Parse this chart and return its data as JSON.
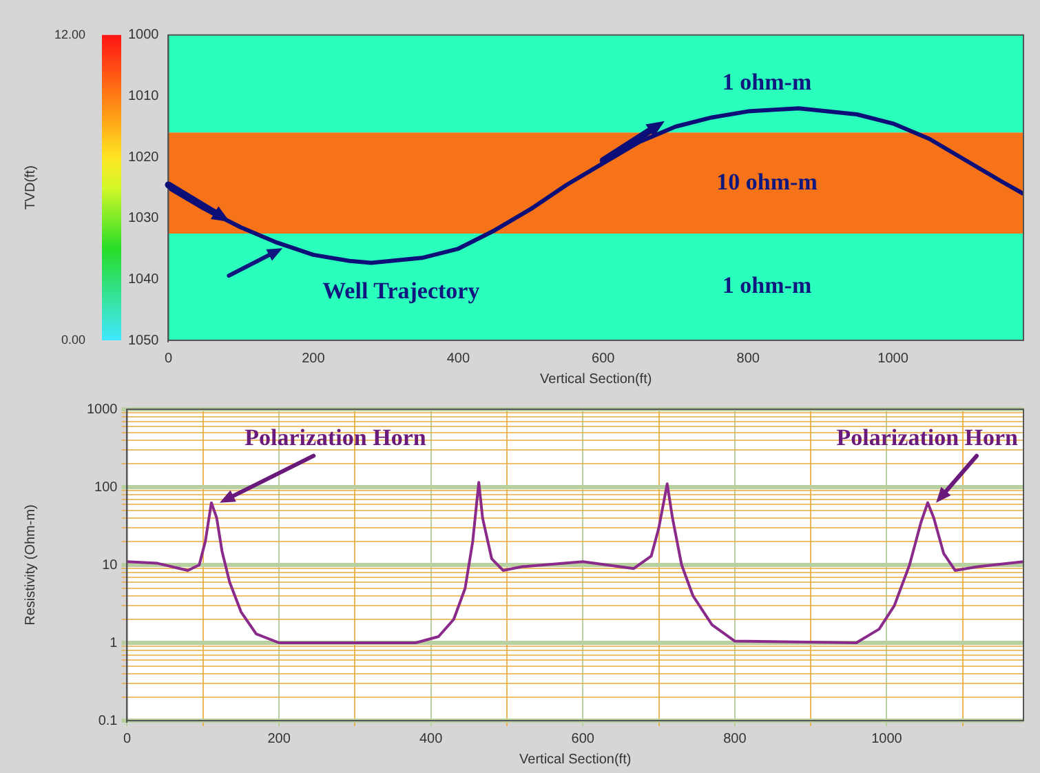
{
  "chart_data": [
    {
      "type": "line",
      "xlabel": "Vertical Section(ft)",
      "ylabel": "TVD(ft)",
      "xlim": [
        0,
        1180
      ],
      "xticks": [
        0,
        200,
        400,
        600,
        800,
        1000
      ],
      "ylim": [
        1050,
        1000
      ],
      "yticks": [
        1000,
        1010,
        1020,
        1030,
        1040,
        1050
      ],
      "grid": false,
      "legend": false,
      "clim": [
        0,
        12
      ],
      "cticks": [
        {
          "value": 0,
          "label": "0.00"
        },
        {
          "value": 12,
          "label": "12.00"
        }
      ],
      "bands": [
        {
          "axis": "y",
          "from": 1000,
          "to": 1016,
          "label": "1 ohm-m",
          "color": "#2affbb"
        },
        {
          "axis": "y",
          "from": 1016,
          "to": 1032.5,
          "label": "10 ohm-m",
          "color": "#f7731a"
        },
        {
          "axis": "y",
          "from": 1032.5,
          "to": 1050,
          "label": "1 ohm-m",
          "color": "#2affbb"
        }
      ],
      "series": [
        {
          "color": "#0c0f78",
          "x": [
            0,
            50,
            100,
            150,
            200,
            250,
            280,
            350,
            400,
            450,
            500,
            550,
            600,
            650,
            700,
            750,
            800,
            870,
            950,
            1000,
            1050,
            1100,
            1150,
            1180
          ],
          "values": [
            1025,
            1028.5,
            1031.5,
            1034,
            1036,
            1037,
            1037.3,
            1036.5,
            1035,
            1032,
            1028.5,
            1024.5,
            1021,
            1017.5,
            1015,
            1013.5,
            1012.5,
            1012,
            1013,
            1014.5,
            1017,
            1020.5,
            1024,
            1026
          ]
        }
      ],
      "annotations": [
        {
          "text": "Well Trajectory",
          "x": 150,
          "y": 1034
        }
      ]
    },
    {
      "type": "line",
      "xlabel": "Vertical Section(ft)",
      "ylabel": "Resistivity (Ohm-m)",
      "xlim": [
        0,
        1180
      ],
      "xticks": [
        0,
        {
          "value": 100,
          "label": null
        },
        200,
        {
          "value": 300,
          "label": null
        },
        400,
        {
          "value": 500,
          "label": null
        },
        600,
        {
          "value": 700,
          "label": null
        },
        800,
        {
          "value": 900,
          "label": null
        },
        1000,
        {
          "value": 1100,
          "label": null
        }
      ],
      "ylim": [
        0.1,
        1000
      ],
      "yticks": [
        0.1,
        {
          "value": 0.2,
          "label": null
        },
        {
          "value": 0.3,
          "label": null
        },
        {
          "value": 0.4,
          "label": null
        },
        {
          "value": 0.5,
          "label": null
        },
        {
          "value": 0.6,
          "label": null
        },
        {
          "value": 0.7,
          "label": null
        },
        {
          "value": 0.8,
          "label": null
        },
        {
          "value": 0.9,
          "label": null
        },
        1,
        {
          "value": 2,
          "label": null
        },
        {
          "value": 3,
          "label": null
        },
        {
          "value": 4,
          "label": null
        },
        {
          "value": 5,
          "label": null
        },
        {
          "value": 6,
          "label": null
        },
        {
          "value": 7,
          "label": null
        },
        {
          "value": 8,
          "label": null
        },
        {
          "value": 9,
          "label": null
        },
        10,
        {
          "value": 20,
          "label": null
        },
        {
          "value": 30,
          "label": null
        },
        {
          "value": 40,
          "label": null
        },
        {
          "value": 50,
          "label": null
        },
        {
          "value": 60,
          "label": null
        },
        {
          "value": 70,
          "label": null
        },
        {
          "value": 80,
          "label": null
        },
        {
          "value": 90,
          "label": null
        },
        100,
        {
          "value": 200,
          "label": null
        },
        {
          "value": 300,
          "label": null
        },
        {
          "value": 400,
          "label": null
        },
        {
          "value": 500,
          "label": null
        },
        {
          "value": 600,
          "label": null
        },
        {
          "value": 700,
          "label": null
        },
        {
          "value": 800,
          "label": null
        },
        {
          "value": 900,
          "label": null
        },
        1000
      ],
      "log": "y",
      "grid": true,
      "legend": false,
      "series": [
        {
          "color": "#8a2a8a",
          "x": [
            0,
            40,
            80,
            95,
            103,
            111,
            118,
            125,
            135,
            150,
            170,
            200,
            300,
            380,
            410,
            430,
            445,
            455,
            463,
            468,
            480,
            495,
            520,
            600,
            667,
            690,
            700,
            711,
            718,
            730,
            745,
            770,
            800,
            960,
            990,
            1010,
            1030,
            1045,
            1054,
            1062,
            1075,
            1090,
            1120,
            1180
          ],
          "values": [
            11,
            10.5,
            8.5,
            10,
            20,
            63,
            40,
            15,
            6,
            2.5,
            1.3,
            1,
            1,
            1,
            1.2,
            2,
            5,
            20,
            115,
            40,
            12,
            8.5,
            9.5,
            11,
            9,
            13,
            30,
            110,
            40,
            10,
            4,
            1.7,
            1.05,
            1,
            1.5,
            3,
            10,
            35,
            63,
            40,
            14,
            8.5,
            9.5,
            11
          ]
        }
      ],
      "annotations": [
        {
          "text": "Polarization Horn",
          "x": 111,
          "y": 63
        },
        {
          "text": "Polarization Horn",
          "x": 1054,
          "y": 63
        }
      ]
    }
  ]
}
